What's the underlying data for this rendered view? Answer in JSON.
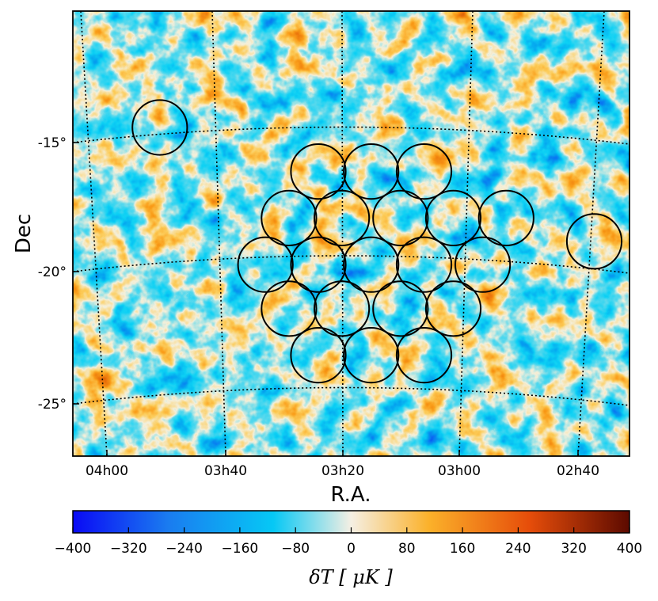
{
  "chart_data": {
    "type": "heatmap",
    "subtype": "sky temperature map (CMB) with pointing footprints",
    "xlabel": "R.A.",
    "ylabel": "Dec",
    "x_ticks": [
      "04h00",
      "03h40",
      "03h20",
      "03h00",
      "02h40"
    ],
    "y_ticks": [
      "-15°",
      "-20°",
      "-25°"
    ],
    "ra_range_hours": [
      4.13,
      2.55
    ],
    "dec_range_deg": [
      -27.2,
      -10.0
    ],
    "grid": "dotted",
    "colorbar": {
      "label": "δT [ μK ]",
      "range": [
        -400,
        400
      ],
      "ticks": [
        "−400",
        "−320",
        "−240",
        "−160",
        "−80",
        "0",
        "80",
        "160",
        "240",
        "320",
        "400"
      ],
      "colors": [
        "#0a0af5",
        "#1a7bf0",
        "#06c8f5",
        "#f5efe3",
        "#fbb12a",
        "#e64d0a",
        "#5c0a00"
      ]
    },
    "circles_ra_dec": [
      {
        "ra": "03h26m",
        "dec": -16.2
      },
      {
        "ra": "03h17m",
        "dec": -16.2
      },
      {
        "ra": "03h08m",
        "dec": -16.2
      },
      {
        "ra": "03h31m",
        "dec": -18.0
      },
      {
        "ra": "03h22m",
        "dec": -18.0
      },
      {
        "ra": "03h12m",
        "dec": -18.0
      },
      {
        "ra": "03h03m",
        "dec": -18.0
      },
      {
        "ra": "02h54m",
        "dec": -18.0
      },
      {
        "ra": "03h35m",
        "dec": -19.8
      },
      {
        "ra": "03h26m",
        "dec": -19.8
      },
      {
        "ra": "03h17m",
        "dec": -19.8
      },
      {
        "ra": "03h08m",
        "dec": -19.8
      },
      {
        "ra": "02h58m",
        "dec": -19.8
      },
      {
        "ra": "03h31m",
        "dec": -21.5
      },
      {
        "ra": "03h22m",
        "dec": -21.5
      },
      {
        "ra": "03h12m",
        "dec": -21.5
      },
      {
        "ra": "03h03m",
        "dec": -21.5
      },
      {
        "ra": "03h26m",
        "dec": -23.3
      },
      {
        "ra": "03h17m",
        "dec": -23.3
      },
      {
        "ra": "03h08m",
        "dec": -23.3
      },
      {
        "ra": "03h53m",
        "dec": -14.5
      },
      {
        "ra": "02h39m",
        "dec": -18.9
      }
    ]
  }
}
